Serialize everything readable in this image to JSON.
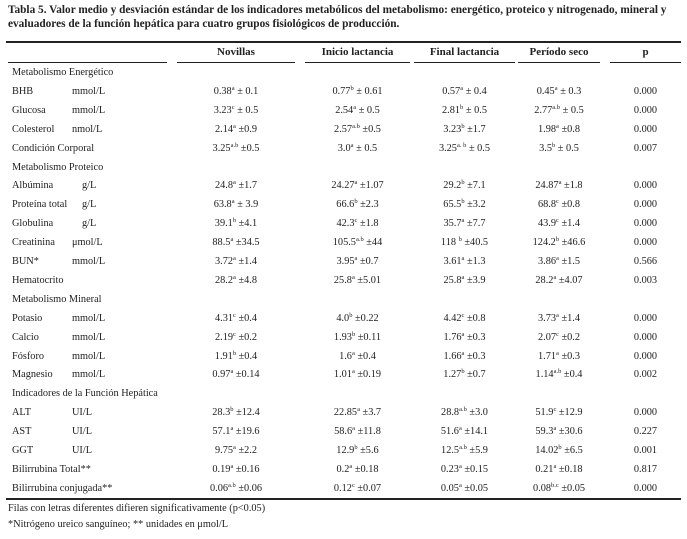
{
  "title": "Tabla 5. Valor medio y desviación estándar de los indicadores metabólicos del metabolismo: energético, proteico y nitrogenado, mineral y evaluadores de la función hepática para cuatro grupos fisiológicos de producción.",
  "columns": [
    "",
    "Novillas",
    "Inicio lactancia",
    "Final lactancia",
    "Período seco",
    "p"
  ],
  "sections": [
    {
      "label": "Metabolismo Energético",
      "rows": [
        {
          "label": "BHB",
          "unit": "mmol/L",
          "cells": [
            {
              "v": "0.38",
              "s": "a",
              "e": "± 0.1"
            },
            {
              "v": "0.77",
              "s": "b",
              "e": "± 0.61"
            },
            {
              "v": "0.57",
              "s": "a",
              "e": "± 0.4"
            },
            {
              "v": "0.45",
              "s": "a",
              "e": "± 0.3"
            }
          ],
          "p": "0.000"
        },
        {
          "label": "Glucosa",
          "unit": "mmol/L",
          "cells": [
            {
              "v": "3.23",
              "s": "c",
              "e": "± 0.5"
            },
            {
              "v": "2.54",
              "s": "a",
              "e": "± 0.5"
            },
            {
              "v": "2.81",
              "s": "b",
              "e": "± 0.5"
            },
            {
              "v": "2.77",
              "s": "a.b",
              "e": "± 0.5"
            }
          ],
          "p": "0.000"
        },
        {
          "label": "Colesterol",
          "unit": "nmol/L",
          "cells": [
            {
              "v": "2.14",
              "s": "a",
              "e": "±0.9"
            },
            {
              "v": "2.57",
              "s": "a.b",
              "e": "±0.5"
            },
            {
              "v": "3.23",
              "s": "b",
              "e": "±1.7"
            },
            {
              "v": "1.98",
              "s": "a",
              "e": "±0.8"
            }
          ],
          "p": "0.000"
        },
        {
          "label": "Condición Corporal",
          "unit": "",
          "cells": [
            {
              "v": "3.25",
              "s": "a.b",
              "e": "±0.5"
            },
            {
              "v": "3.0",
              "s": "a",
              "e": "± 0.5"
            },
            {
              "v": "3.25",
              "s": "a. b",
              "e": "± 0.5"
            },
            {
              "v": "3.5",
              "s": "b",
              "e": "± 0.5"
            }
          ],
          "p": "0.007"
        }
      ]
    },
    {
      "label": "Metabolismo Proteico",
      "rows": [
        {
          "label": "Albúmina",
          "unit": "g/L",
          "cells": [
            {
              "v": "24.8",
              "s": "a",
              "e": "±1.7"
            },
            {
              "v": "24.27",
              "s": "a",
              "e": "±1.07"
            },
            {
              "v": "29.2",
              "s": "b",
              "e": "±7.1"
            },
            {
              "v": "24.87",
              "s": "a",
              "e": "±1.8"
            }
          ],
          "p": "0.000"
        },
        {
          "label": "Proteína total",
          "unit": "g/L",
          "cells": [
            {
              "v": "63.8",
              "s": "a",
              "e": "± 3.9"
            },
            {
              "v": "66.6",
              "s": "b",
              "e": "±2.3"
            },
            {
              "v": "65.5",
              "s": "b",
              "e": "±3.2"
            },
            {
              "v": "68.8",
              "s": "c",
              "e": "±0.8"
            }
          ],
          "p": "0.000"
        },
        {
          "label": "Globulina",
          "unit": "g/L",
          "cells": [
            {
              "v": "39.1",
              "s": "b",
              "e": "±4.1"
            },
            {
              "v": "42.3",
              "s": "c",
              "e": "±1.8"
            },
            {
              "v": "35.7",
              "s": "a",
              "e": "±7.7"
            },
            {
              "v": "43.9",
              "s": "c",
              "e": "±1.4"
            }
          ],
          "p": "0.000"
        },
        {
          "label": "Creatinina",
          "unit": "μmol/L",
          "cells": [
            {
              "v": "88.5",
              "s": "a",
              "e": "±34.5"
            },
            {
              "v": "105.5",
              "s": "a.b",
              "e": "±44"
            },
            {
              "v": "118 ",
              "s": "b",
              "e": "±40.5"
            },
            {
              "v": "124.2",
              "s": "b",
              "e": "±46.6"
            }
          ],
          "p": "0.000"
        },
        {
          "label": "BUN*",
          "unit": "mmol/L",
          "cells": [
            {
              "v": "3.72",
              "s": "a",
              "e": "±1.4"
            },
            {
              "v": "3.95",
              "s": "a",
              "e": "±0.7"
            },
            {
              "v": "3.61",
              "s": "a",
              "e": "±1.3"
            },
            {
              "v": "3.86",
              "s": "a",
              "e": "±1.5"
            }
          ],
          "p": "0.566"
        },
        {
          "label": "Hematocrito",
          "unit": "",
          "cells": [
            {
              "v": "28.2",
              "s": "a",
              "e": "±4.8"
            },
            {
              "v": "25.8",
              "s": "a",
              "e": "±5.01"
            },
            {
              "v": "25.8",
              "s": "a",
              "e": "±3.9"
            },
            {
              "v": "28.2",
              "s": "a",
              "e": "±4.07"
            }
          ],
          "p": "0.003"
        }
      ]
    },
    {
      "label": "Metabolismo Mineral",
      "rows": [
        {
          "label": "Potasio",
          "unit": "mmol/L",
          "cells": [
            {
              "v": "4.31",
              "s": "c",
              "e": "±0.4"
            },
            {
              "v": "4.0",
              "s": "b",
              "e": "±0.22"
            },
            {
              "v": "4.42",
              "s": "c",
              "e": "±0.8"
            },
            {
              "v": "3.73",
              "s": "a",
              "e": "±1.4"
            }
          ],
          "p": "0.000"
        },
        {
          "label": "Calcio",
          "unit": "mmol/L",
          "cells": [
            {
              "v": "2.19",
              "s": "c",
              "e": "±0.2"
            },
            {
              "v": "1.93",
              "s": "b",
              "e": "±0.11"
            },
            {
              "v": "1.76",
              "s": "a",
              "e": "±0.3"
            },
            {
              "v": "2.07",
              "s": "c",
              "e": "±0.2"
            }
          ],
          "p": "0.000"
        },
        {
          "label": "Fósforo",
          "unit": "mmol/L",
          "cells": [
            {
              "v": "1.91",
              "s": "b",
              "e": "±0.4"
            },
            {
              "v": "1.6",
              "s": "a",
              "e": "±0.4"
            },
            {
              "v": "1.66",
              "s": "a",
              "e": "±0.3"
            },
            {
              "v": "1.71",
              "s": "a",
              "e": "±0.3"
            }
          ],
          "p": "0.000"
        },
        {
          "label": "Magnesio",
          "unit": "mmol/L",
          "cells": [
            {
              "v": "0.97",
              "s": "a",
              "e": "±0.14"
            },
            {
              "v": "1.01",
              "s": "a",
              "e": "±0.19"
            },
            {
              "v": "1.27",
              "s": "b",
              "e": "±0.7"
            },
            {
              "v": "1.14",
              "s": "a.b",
              "e": "±0.4"
            }
          ],
          "p": "0.002"
        }
      ]
    },
    {
      "label": "Indicadores de la Función Hepática",
      "rows": [
        {
          "label": "ALT",
          "unit": "UI/L",
          "cells": [
            {
              "v": "28.3",
              "s": "b",
              "e": "±12.4"
            },
            {
              "v": "22.85",
              "s": "a",
              "e": "±3.7"
            },
            {
              "v": "28.8",
              "s": "a.b",
              "e": "±3.0"
            },
            {
              "v": "51.9",
              "s": "c",
              "e": "±12.9"
            }
          ],
          "p": "0.000"
        },
        {
          "label": "AST",
          "unit": "UI/L",
          "cells": [
            {
              "v": "57.1",
              "s": "a",
              "e": "±19.6"
            },
            {
              "v": "58.6",
              "s": "a",
              "e": "±11.8"
            },
            {
              "v": "51.6",
              "s": "a",
              "e": "±14.1"
            },
            {
              "v": "59.3",
              "s": "a",
              "e": "±30.6"
            }
          ],
          "p": "0.227"
        },
        {
          "label": "GGT",
          "unit": "UI/L",
          "cells": [
            {
              "v": "9.75",
              "s": "a",
              "e": "±2.2"
            },
            {
              "v": "12.9",
              "s": "b",
              "e": "±5.6"
            },
            {
              "v": "12.5",
              "s": "a.b",
              "e": "±5.9"
            },
            {
              "v": "14.02",
              "s": "b",
              "e": "±6.5"
            }
          ],
          "p": "0.001"
        },
        {
          "label": "Bilirrubina Total**",
          "unit": "",
          "cells": [
            {
              "v": "0.19",
              "s": "a",
              "e": "±0.16"
            },
            {
              "v": "0.2",
              "s": "a",
              "e": "±0.18"
            },
            {
              "v": "0.23",
              "s": "a",
              "e": "±0.15"
            },
            {
              "v": "0.21",
              "s": "a",
              "e": "±0.18"
            }
          ],
          "p": "0.817"
        },
        {
          "label": "Bilirrubina conjugada**",
          "unit": "",
          "cells": [
            {
              "v": "0.06",
              "s": "a.b",
              "e": "±0.06"
            },
            {
              "v": "0.12",
              "s": "c",
              "e": "±0.07"
            },
            {
              "v": "0.05",
              "s": "a",
              "e": "±0.05"
            },
            {
              "v": "0.08",
              "s": "b.c",
              "e": "±0.05"
            }
          ],
          "p": "0.000"
        }
      ]
    }
  ],
  "footnotes": [
    "Filas con letras diferentes difieren significativamente (p<0.05)",
    "*Nitrógeno ureico sanguíneo; ** unidades en μmol/L"
  ]
}
